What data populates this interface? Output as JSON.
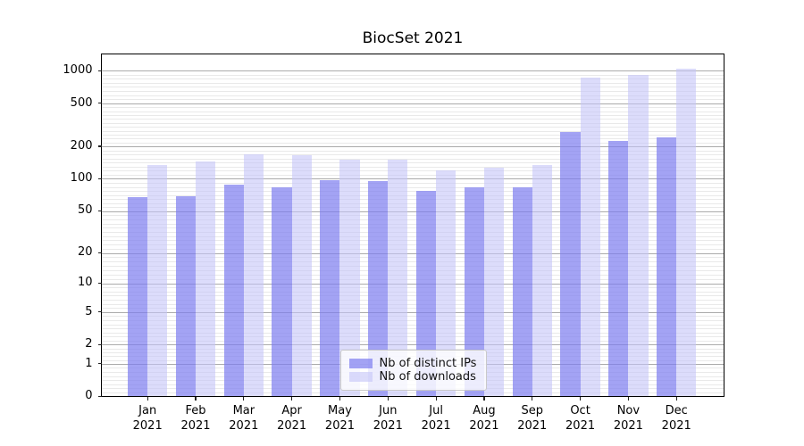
{
  "title": "BiocSet 2021",
  "chart_data": {
    "type": "bar",
    "title": "BiocSet 2021",
    "categories": [
      "Jan",
      "Feb",
      "Mar",
      "Apr",
      "May",
      "Jun",
      "Jul",
      "Aug",
      "Sep",
      "Oct",
      "Nov",
      "Dec"
    ],
    "category_year": "2021",
    "series": [
      {
        "name": "Nb of distinct IPs",
        "color": "rgba(124,124,239,0.70)",
        "rendered_color": "#a3a3f3",
        "values": [
          67,
          69,
          88,
          83,
          97,
          95,
          77,
          83,
          84,
          270,
          225,
          242
        ]
      },
      {
        "name": "Nb of downloads",
        "color": "rgba(196,196,248,0.60)",
        "rendered_color": "#dbdbfc",
        "values": [
          135,
          145,
          168,
          165,
          152,
          150,
          120,
          128,
          135,
          860,
          920,
          1048
        ]
      }
    ],
    "xlabel": "",
    "ylabel": "",
    "y_ticks": [
      0,
      1,
      2,
      5,
      10,
      20,
      50,
      100,
      200,
      500,
      1000
    ],
    "y_scale": "log1p",
    "ylim": [
      0,
      1411
    ],
    "grid": true,
    "legend_position": "lower center"
  },
  "legend": {
    "items": [
      "Nb of distinct IPs",
      "Nb of downloads"
    ]
  },
  "colors": {
    "background": "#ffffff",
    "major_gridline": "#ababab",
    "minor_gridline": "#e9e9e9",
    "axis_spine": "#000000",
    "text": "#000000"
  }
}
